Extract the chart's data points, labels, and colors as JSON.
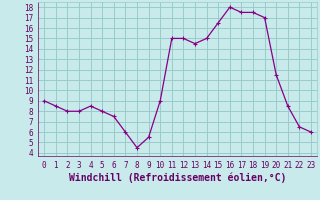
{
  "x": [
    0,
    1,
    2,
    3,
    4,
    5,
    6,
    7,
    8,
    9,
    10,
    11,
    12,
    13,
    14,
    15,
    16,
    17,
    18,
    19,
    20,
    21,
    22,
    23
  ],
  "y": [
    9,
    8.5,
    8,
    8,
    8.5,
    8,
    7.5,
    6,
    4.5,
    5.5,
    9,
    15,
    15,
    14.5,
    15,
    16.5,
    18,
    17.5,
    17.5,
    17,
    11.5,
    8.5,
    6.5,
    6
  ],
  "line_color": "#880088",
  "marker_color": "#880088",
  "bg_color": "#c8eaea",
  "grid_color": "#99cccc",
  "xlabel": "Windchill (Refroidissement éolien,°C)",
  "ylim_min": 4,
  "ylim_max": 18,
  "xlim_min": 0,
  "xlim_max": 23,
  "yticks": [
    4,
    5,
    6,
    7,
    8,
    9,
    10,
    11,
    12,
    13,
    14,
    15,
    16,
    17,
    18
  ],
  "xticks": [
    0,
    1,
    2,
    3,
    4,
    5,
    6,
    7,
    8,
    9,
    10,
    11,
    12,
    13,
    14,
    15,
    16,
    17,
    18,
    19,
    20,
    21,
    22,
    23
  ],
  "tick_color": "#660066",
  "xlabel_color": "#660066",
  "tick_fontsize": 5.5,
  "xlabel_fontsize": 7.0,
  "linewidth": 0.9,
  "markersize": 2.0
}
